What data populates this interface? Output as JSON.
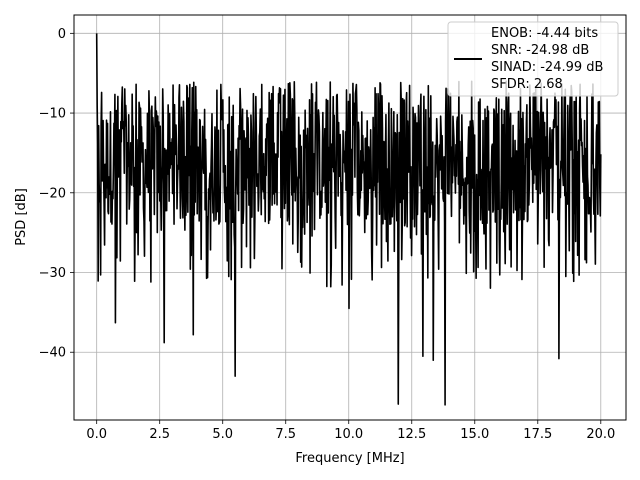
{
  "chart_data": {
    "type": "line",
    "title": "",
    "xlabel": "Frequency [MHz]",
    "ylabel": "PSD [dB]",
    "xlim": [
      -0.9,
      21.0
    ],
    "ylim": [
      -48.5,
      2.3
    ],
    "grid": true,
    "legend_placement": "top-right",
    "line_color": "#000000",
    "x_ticks": [
      0.0,
      2.5,
      5.0,
      7.5,
      10.0,
      12.5,
      15.0,
      17.5,
      20.0
    ],
    "x_tick_labels": [
      "0.0",
      "2.5",
      "5.0",
      "7.5",
      "10.0",
      "12.5",
      "15.0",
      "17.5",
      "20.0"
    ],
    "y_ticks": [
      0,
      -10,
      -20,
      -30,
      -40
    ],
    "y_tick_labels": [
      "0",
      "−10",
      "−20",
      "−30",
      "−40"
    ],
    "legend": [
      "ENOB: -4.44 bits",
      "SNR: -24.98 dB",
      "SINAD: -24.99 dB",
      "SFDR: 2.68"
    ],
    "series": [
      {
        "x_range": [
          0,
          20
        ],
        "points": 1024,
        "dominant_peak": {
          "x": 0.0,
          "y": 0.0
        },
        "upper_envelope_db": -6,
        "typical_band_db": [
          -24,
          -9
        ],
        "notable_minima": [
          {
            "x": 0.75,
            "y": -36.3
          },
          {
            "x": 2.67,
            "y": -38.8
          },
          {
            "x": 3.83,
            "y": -37.8
          },
          {
            "x": 5.5,
            "y": -43.0
          },
          {
            "x": 10.0,
            "y": -34.5
          },
          {
            "x": 11.96,
            "y": -46.5
          },
          {
            "x": 12.95,
            "y": -40.5
          },
          {
            "x": 13.35,
            "y": -41.0
          },
          {
            "x": 13.83,
            "y": -46.6
          },
          {
            "x": 18.33,
            "y": -40.8
          }
        ]
      }
    ]
  }
}
